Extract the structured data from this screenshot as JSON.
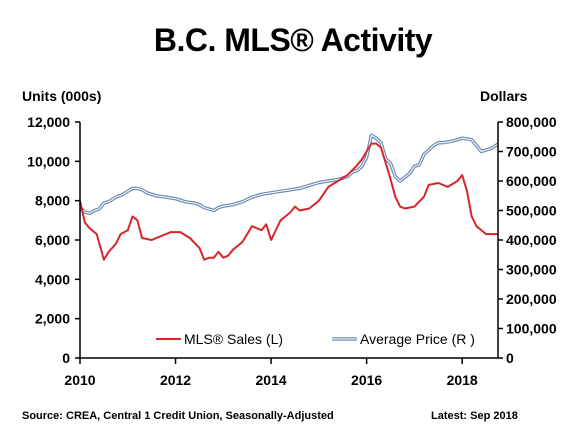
{
  "chart_data": {
    "type": "line",
    "title": "B.C. MLS® Activity",
    "y_left_label": "Units (000s)",
    "y_right_label": "Dollars",
    "source": "Source: CREA, Central 1 Credit Union, Seasonally-Adjusted",
    "latest": "Latest: Sep 2018",
    "x_ticks": [
      "2010",
      "2012",
      "2014",
      "2016",
      "2018"
    ],
    "y_left_ticks": [
      "0",
      "2,000",
      "4,000",
      "6,000",
      "8,000",
      "10,000",
      "12,000"
    ],
    "y_right_ticks": [
      "0",
      "100,000",
      "200,000",
      "300,000",
      "400,000",
      "500,000",
      "600,000",
      "700,000",
      "800,000"
    ],
    "ylim_left": [
      0,
      12000
    ],
    "ylim_right": [
      0,
      800000
    ],
    "xlim": [
      2010.0,
      2018.75
    ],
    "legend_position": "bottom",
    "colors": {
      "sales": "#d7262b",
      "price": "#6f8eb6"
    },
    "series": [
      {
        "name": "MLS® Sales (L)",
        "axis": "left",
        "x": [
          2010.0,
          2010.1,
          2010.2,
          2010.35,
          2010.5,
          2010.6,
          2010.75,
          2010.85,
          2011.0,
          2011.1,
          2011.2,
          2011.3,
          2011.5,
          2011.7,
          2011.9,
          2012.1,
          2012.3,
          2012.5,
          2012.6,
          2012.7,
          2012.8,
          2012.9,
          2013.0,
          2013.1,
          2013.2,
          2013.4,
          2013.6,
          2013.8,
          2013.9,
          2014.0,
          2014.2,
          2014.4,
          2014.5,
          2014.6,
          2014.8,
          2015.0,
          2015.2,
          2015.4,
          2015.6,
          2015.8,
          2015.9,
          2016.0,
          2016.1,
          2016.2,
          2016.3,
          2016.5,
          2016.6,
          2016.7,
          2016.8,
          2017.0,
          2017.2,
          2017.3,
          2017.5,
          2017.7,
          2017.9,
          2018.0,
          2018.1,
          2018.2,
          2018.3,
          2018.5,
          2018.75
        ],
        "values": [
          8000,
          6900,
          6600,
          6300,
          5000,
          5400,
          5800,
          6300,
          6500,
          7200,
          7000,
          6100,
          6000,
          6200,
          6400,
          6400,
          6100,
          5600,
          5000,
          5100,
          5100,
          5400,
          5100,
          5200,
          5500,
          5900,
          6700,
          6500,
          6800,
          6000,
          7000,
          7400,
          7700,
          7500,
          7600,
          8000,
          8700,
          9000,
          9300,
          9800,
          10100,
          10500,
          10900,
          10900,
          10700,
          9100,
          8200,
          7700,
          7600,
          7700,
          8200,
          8800,
          8900,
          8700,
          9000,
          9300,
          8500,
          7200,
          6700,
          6300,
          6300
        ]
      },
      {
        "name": "Average Price (R )",
        "axis": "right",
        "x": [
          2010.0,
          2010.1,
          2010.2,
          2010.3,
          2010.4,
          2010.5,
          2010.6,
          2010.75,
          2010.9,
          2011.0,
          2011.1,
          2011.2,
          2011.3,
          2011.4,
          2011.5,
          2011.6,
          2011.8,
          2012.0,
          2012.2,
          2012.4,
          2012.5,
          2012.6,
          2012.8,
          2012.9,
          2013.0,
          2013.2,
          2013.4,
          2013.6,
          2013.8,
          2014.0,
          2014.2,
          2014.4,
          2014.6,
          2014.8,
          2015.0,
          2015.2,
          2015.4,
          2015.6,
          2015.7,
          2015.8,
          2015.9,
          2016.0,
          2016.1,
          2016.2,
          2016.3,
          2016.4,
          2016.5,
          2016.6,
          2016.7,
          2016.9,
          2017.0,
          2017.1,
          2017.2,
          2017.3,
          2017.4,
          2017.5,
          2017.6,
          2017.8,
          2018.0,
          2018.2,
          2018.4,
          2018.6,
          2018.75
        ],
        "values": [
          510000,
          495000,
          490000,
          500000,
          505000,
          525000,
          530000,
          545000,
          555000,
          565000,
          575000,
          575000,
          570000,
          560000,
          555000,
          550000,
          545000,
          540000,
          530000,
          525000,
          520000,
          510000,
          500000,
          510000,
          515000,
          520000,
          530000,
          545000,
          555000,
          560000,
          565000,
          570000,
          575000,
          585000,
          595000,
          600000,
          605000,
          615000,
          630000,
          635000,
          650000,
          680000,
          755000,
          745000,
          730000,
          675000,
          660000,
          615000,
          600000,
          625000,
          650000,
          655000,
          690000,
          705000,
          720000,
          730000,
          730000,
          735000,
          745000,
          740000,
          700000,
          710000,
          725000
        ]
      }
    ]
  }
}
